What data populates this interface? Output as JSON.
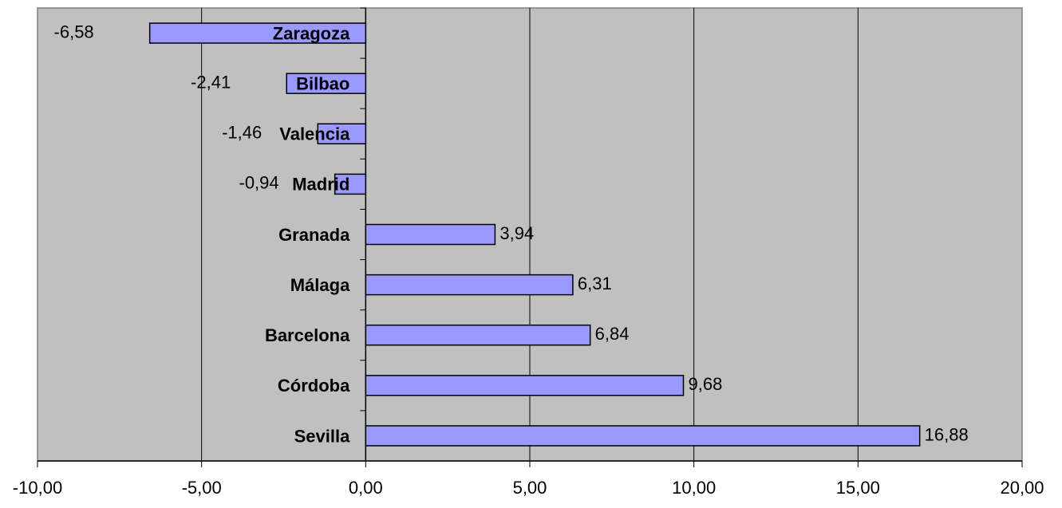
{
  "chart_data": {
    "type": "bar",
    "orientation": "horizontal",
    "categories": [
      "Zaragoza",
      "Bilbao",
      "Valencia",
      "Madrid",
      "Granada",
      "Málaga",
      "Barcelona",
      "Córdoba",
      "Sevilla"
    ],
    "values": [
      -6.58,
      -2.41,
      -1.46,
      -0.94,
      3.94,
      6.31,
      6.84,
      9.68,
      16.88
    ],
    "value_labels": [
      "-6,58",
      "-2,41",
      "-1,46",
      "-0,94",
      "3,94",
      "6,31",
      "6,84",
      "9,68",
      "16,88"
    ],
    "color": "#9999ff",
    "xlim": [
      -10,
      20
    ],
    "xticks": [
      {
        "value": -10,
        "label": "-10,00"
      },
      {
        "value": -5,
        "label": "-5,00"
      },
      {
        "value": 0,
        "label": "0,00"
      },
      {
        "value": 5,
        "label": "5,00"
      },
      {
        "value": 10,
        "label": "10,00"
      },
      {
        "value": 15,
        "label": "15,00"
      },
      {
        "value": 20,
        "label": "20,00"
      }
    ],
    "grid": true
  }
}
